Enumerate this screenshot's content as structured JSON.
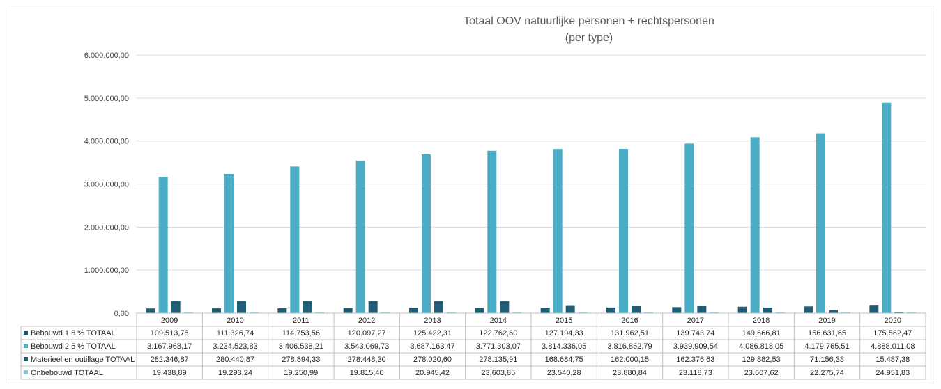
{
  "chart_data": {
    "type": "bar",
    "title": "Totaal OOV natuurlijke personen + rechtspersonen",
    "subtitle": "(per type)",
    "categories": [
      "2009",
      "2010",
      "2011",
      "2012",
      "2013",
      "2014",
      "2015",
      "2016",
      "2017",
      "2018",
      "2019",
      "2020"
    ],
    "ylim": [
      0,
      6000000
    ],
    "yticks": [
      "0,00",
      "1.000.000,00",
      "2.000.000,00",
      "3.000.000,00",
      "4.000.000,00",
      "5.000.000,00",
      "6.000.000,00"
    ],
    "ytick_values": [
      0,
      1000000,
      2000000,
      3000000,
      4000000,
      5000000,
      6000000
    ],
    "grid": true,
    "legend_placement": "data-table",
    "series": [
      {
        "name": "Bebouwd 1,6 % TOTAAL",
        "color": "#1f5c73",
        "values": [
          109513.78,
          111326.74,
          114753.56,
          120097.27,
          125422.31,
          122762.6,
          127194.33,
          131962.51,
          139743.74,
          149666.81,
          156631.65,
          175562.47
        ],
        "labels": [
          "109.513,78",
          "111.326,74",
          "114.753,56",
          "120.097,27",
          "125.422,31",
          "122.762,60",
          "127.194,33",
          "131.962,51",
          "139.743,74",
          "149.666,81",
          "156.631,65",
          "175.562,47"
        ]
      },
      {
        "name": "Bebouwd 2,5 % TOTAAL",
        "color": "#4bacc6",
        "values": [
          3167968.17,
          3234523.83,
          3406538.21,
          3543069.73,
          3687163.47,
          3771303.07,
          3814336.05,
          3816852.79,
          3939909.54,
          4086818.05,
          4179765.51,
          4888011.08
        ],
        "labels": [
          "3.167.968,17",
          "3.234.523,83",
          "3.406.538,21",
          "3.543.069,73",
          "3.687.163,47",
          "3.771.303,07",
          "3.814.336,05",
          "3.816.852,79",
          "3.939.909,54",
          "4.086.818,05",
          "4.179.765,51",
          "4.888.011,08"
        ]
      },
      {
        "name": "Materieel en outillage TOTAAL",
        "color": "#215f79",
        "values": [
          282346.87,
          280440.87,
          278894.33,
          278448.3,
          278020.6,
          278135.91,
          168684.75,
          162000.15,
          162376.63,
          129882.53,
          71156.38,
          15487.38
        ],
        "labels": [
          "282.346,87",
          "280.440,87",
          "278.894,33",
          "278.448,30",
          "278.020,60",
          "278.135,91",
          "168.684,75",
          "162.000,15",
          "162.376,63",
          "129.882,53",
          "71.156,38",
          "15.487,38"
        ]
      },
      {
        "name": "Onbebouwd TOTAAL",
        "color": "#8dc8d9",
        "values": [
          19438.89,
          19293.24,
          19250.99,
          19815.4,
          20945.42,
          23603.85,
          23540.28,
          23880.84,
          23118.73,
          23607.62,
          22275.74,
          24951.83
        ],
        "labels": [
          "19.438,89",
          "19.293,24",
          "19.250,99",
          "19.815,40",
          "20.945,42",
          "23.603,85",
          "23.540,28",
          "23.880,84",
          "23.118,73",
          "23.607,62",
          "22.275,74",
          "24.951,83"
        ]
      }
    ]
  }
}
